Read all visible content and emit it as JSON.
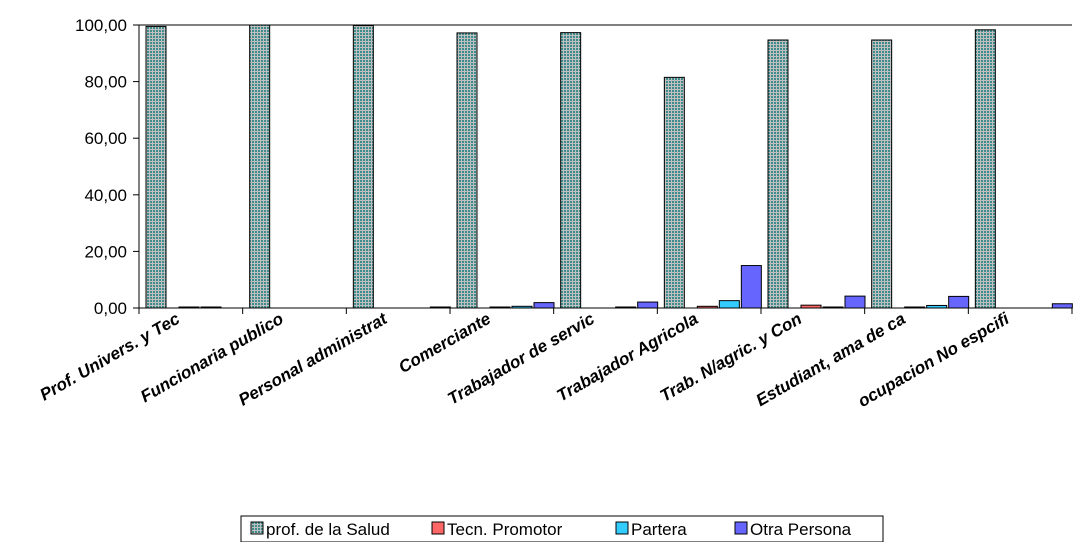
{
  "chart_data": {
    "type": "bar",
    "title": "",
    "xlabel": "",
    "ylabel": "",
    "ylim": [
      0,
      100
    ],
    "yticks": [
      "0,00",
      "20,00",
      "40,00",
      "60,00",
      "80,00",
      "100,00"
    ],
    "grid": false,
    "legend": "bottom",
    "categories": [
      "Prof. Univers. y Tec",
      "Funcionaria publico",
      "Personal administrat",
      "Comerciante",
      "Trabajador de servic",
      "Trabajador  Agricola",
      "Trab. N/agric. y Con",
      "Estudiant, ama de ca",
      "ocupacion No espcifi"
    ],
    "series": [
      {
        "name": "prof. de la Salud",
        "color": "#4aa3a3",
        "pattern": "grid",
        "values": [
          99.5,
          100,
          99.8,
          97.2,
          97.3,
          81.5,
          94.7,
          94.7,
          98.3
        ]
      },
      {
        "name": "Tecn. Promotor",
        "color": "#ff6666",
        "values": [
          0.2,
          0,
          0,
          0.3,
          0,
          0.6,
          1.0,
          0.3,
          0
        ]
      },
      {
        "name": "Partera",
        "color": "#33ccff",
        "values": [
          0.3,
          0,
          0,
          0.6,
          0.3,
          2.6,
          0.3,
          0.9,
          0
        ]
      },
      {
        "name": "Otra Persona",
        "color": "#6666ff",
        "values": [
          0,
          0,
          0.2,
          1.9,
          2.1,
          15.0,
          4.2,
          4.1,
          1.5
        ]
      }
    ]
  }
}
